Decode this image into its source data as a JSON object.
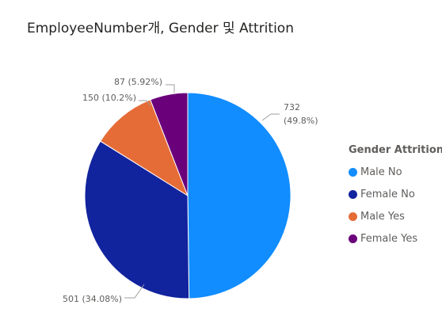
{
  "chart_data": {
    "type": "pie",
    "title": "EmployeeNumber개, Gender 및 Attrition",
    "legend_title": "Gender Attrition",
    "legend_position": "right",
    "slices": [
      {
        "name": "Male No",
        "value": 732,
        "label_value": "732",
        "label_percent": "(49.8%)",
        "color": "#118DFF"
      },
      {
        "name": "Female No",
        "value": 501,
        "label_value": "501",
        "label_percent": "(34.08%)",
        "color": "#12239E"
      },
      {
        "name": "Male Yes",
        "value": 150,
        "label_value": "150",
        "label_percent": "(10.2%)",
        "color": "#E66C37"
      },
      {
        "name": "Female Yes",
        "value": 87,
        "label_value": "87",
        "label_percent": "(5.92%)",
        "color": "#6B007B"
      }
    ]
  }
}
